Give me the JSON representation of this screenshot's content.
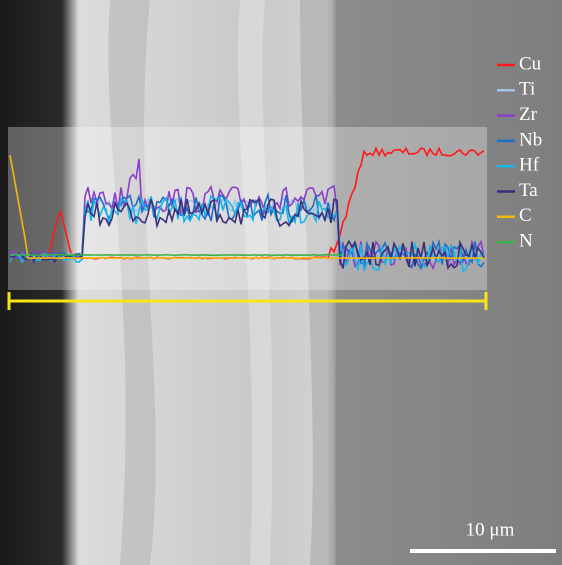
{
  "legend": [
    {
      "name": "Cu",
      "color": "#ff1a1a"
    },
    {
      "name": "Ti",
      "color": "#9ec3e6"
    },
    {
      "name": "Zr",
      "color": "#8b3fc9"
    },
    {
      "name": "Nb",
      "color": "#1f6fc4"
    },
    {
      "name": "Hf",
      "color": "#16b6e8"
    },
    {
      "name": "Ta",
      "color": "#3b2f7a"
    },
    {
      "name": "C",
      "color": "#f2b90f"
    },
    {
      "name": "N",
      "color": "#3cb34a"
    }
  ],
  "scale_bar": {
    "label": "10 μm"
  }
}
